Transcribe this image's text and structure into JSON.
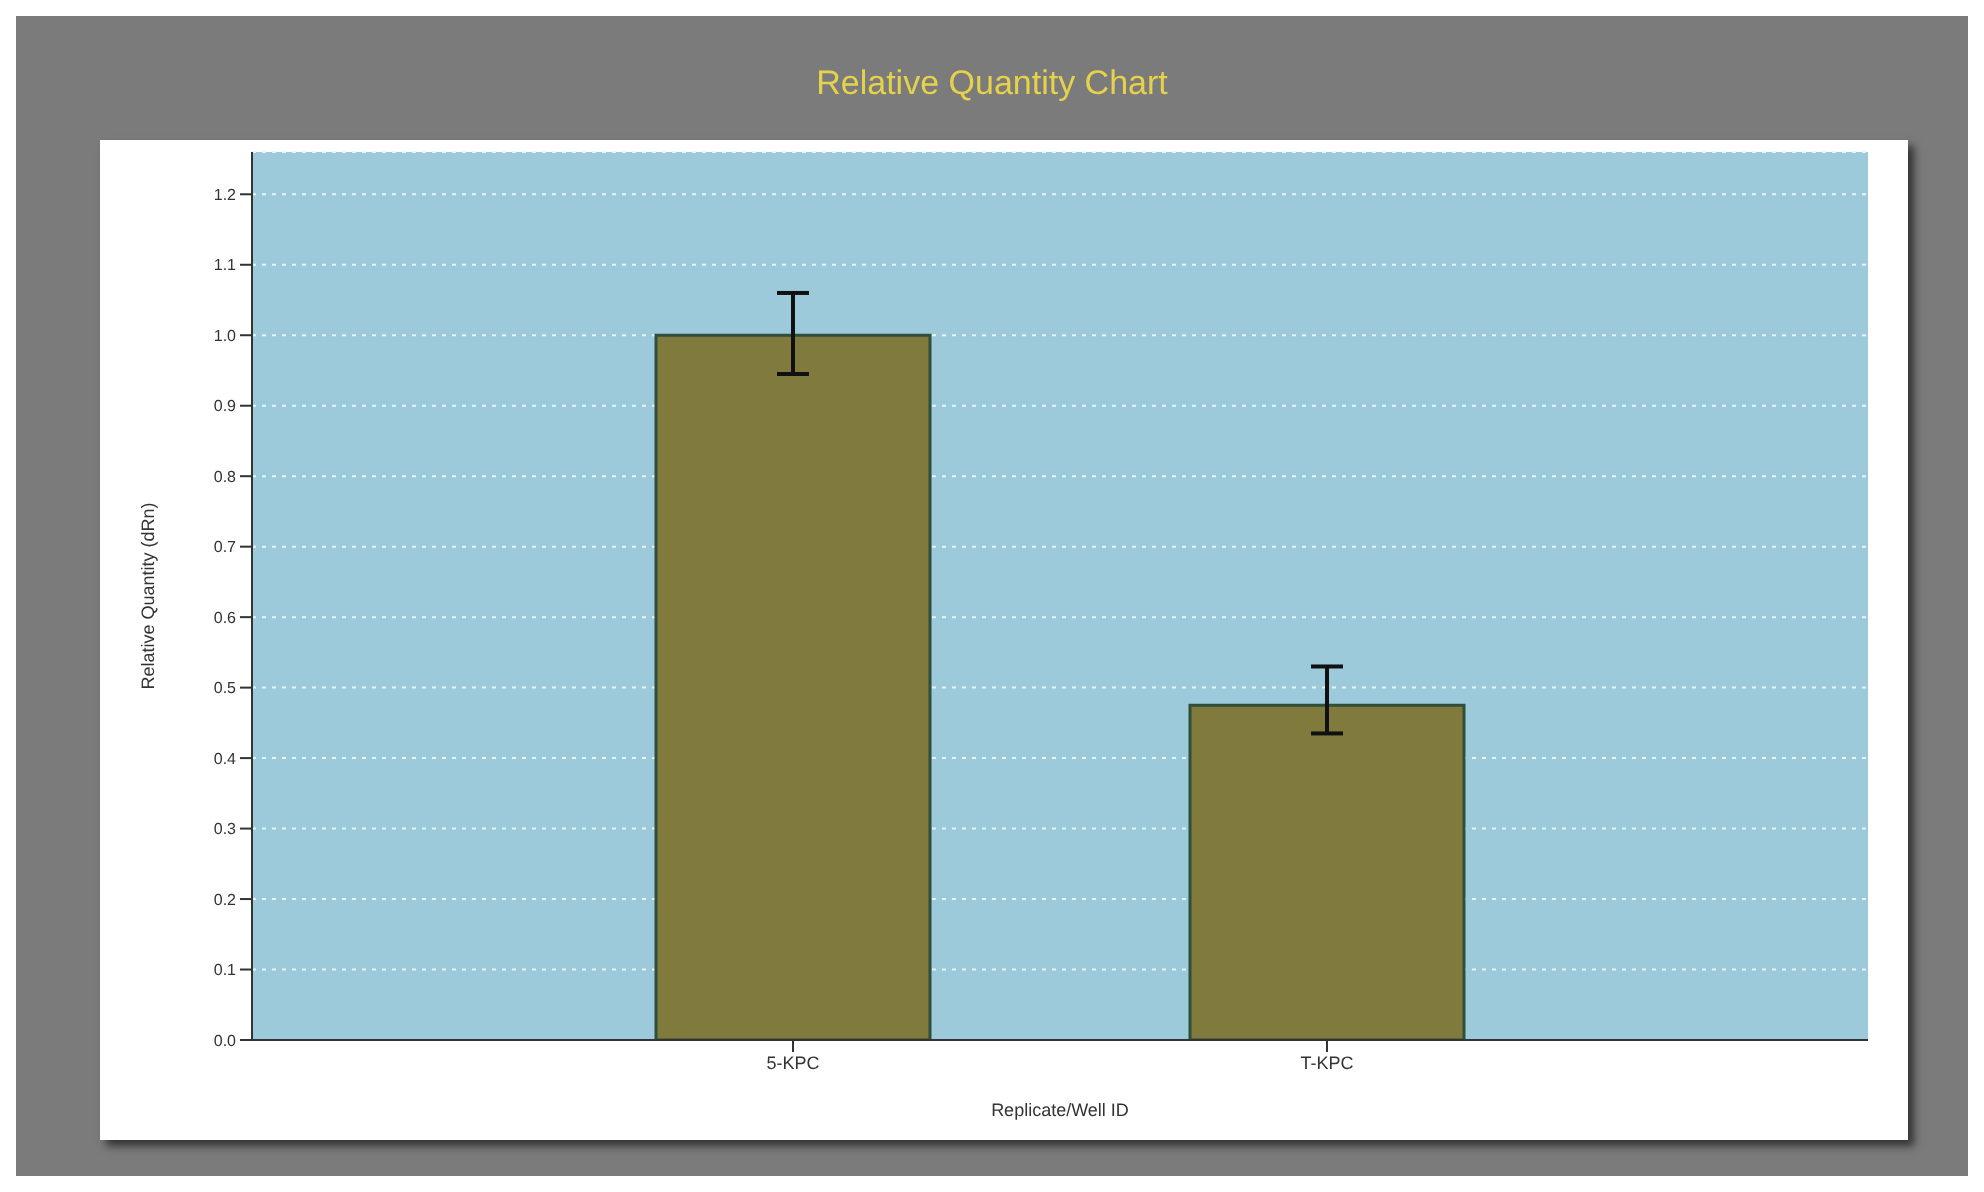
{
  "chart_data": {
    "type": "bar",
    "title": "Relative Quantity Chart",
    "xlabel": "Replicate/Well ID",
    "ylabel": "Relative Quantity (dRn)",
    "categories": [
      "5-KPC",
      "T-KPC"
    ],
    "values": [
      1.0,
      0.475
    ],
    "errors": [
      [
        0.945,
        1.06
      ],
      [
        0.435,
        0.53
      ]
    ],
    "color": "#807b3d",
    "ylim": [
      0,
      1.26
    ],
    "yticks": [
      {
        "value": 0,
        "label": "0.0"
      },
      {
        "value": 0.1,
        "label": "0.1"
      },
      {
        "value": 0.2,
        "label": "0.2"
      },
      {
        "value": 0.3,
        "label": "0.3"
      },
      {
        "value": 0.4,
        "label": "0.4"
      },
      {
        "value": 0.5,
        "label": "0.5"
      },
      {
        "value": 0.6,
        "label": "0.6"
      },
      {
        "value": 0.7,
        "label": "0.7"
      },
      {
        "value": 0.8,
        "label": "0.8"
      },
      {
        "value": 0.9,
        "label": "0.9"
      },
      {
        "value": 1.0,
        "label": "1.0"
      },
      {
        "value": 1.1,
        "label": "1.1"
      },
      {
        "value": 1.2,
        "label": "1.2"
      }
    ],
    "grid": "y",
    "legend": false
  }
}
